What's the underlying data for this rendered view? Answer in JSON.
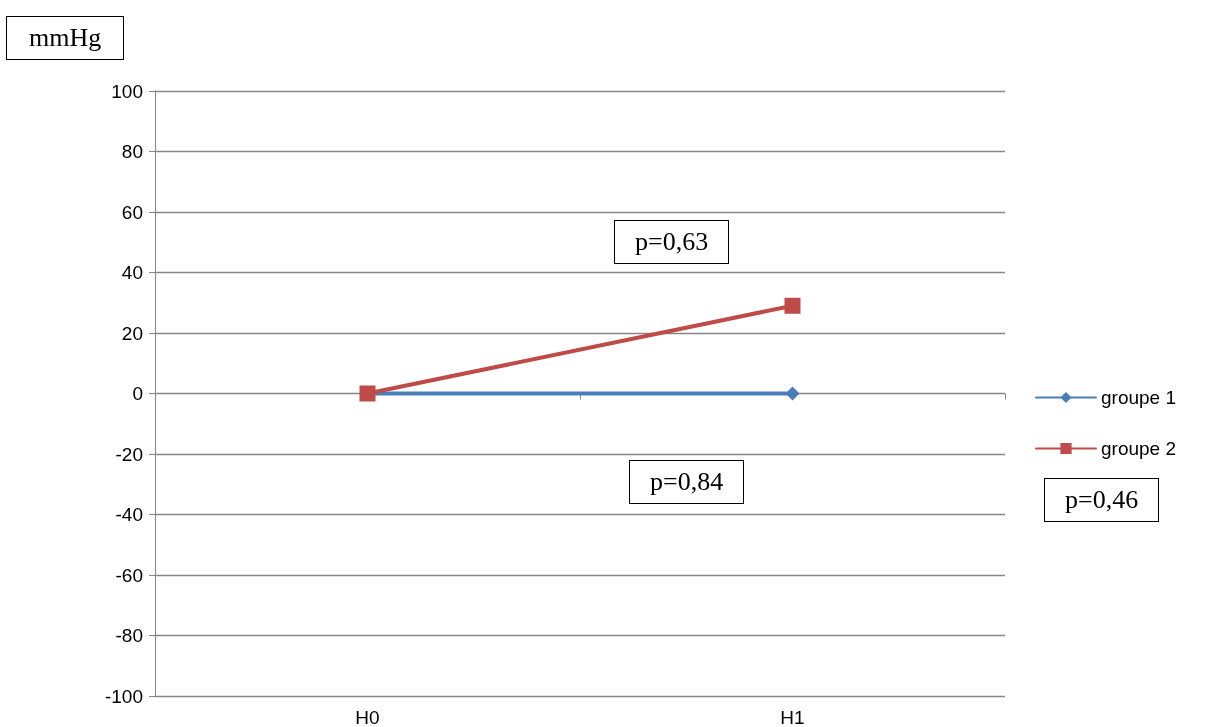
{
  "chart_data": {
    "type": "line",
    "ylabel": "mmHg",
    "categories": [
      "H0",
      "H1"
    ],
    "series": [
      {
        "name": "groupe 1",
        "color": "#4a7ebb",
        "marker": "diamond",
        "values": [
          0,
          0
        ]
      },
      {
        "name": "groupe 2",
        "color": "#be4b48",
        "marker": "square",
        "values": [
          0,
          29
        ]
      }
    ],
    "ylim": [
      -100,
      100
    ],
    "yticks": [
      -100,
      -80,
      -60,
      -40,
      -20,
      0,
      20,
      40,
      60,
      80,
      100
    ],
    "grid": "y",
    "legend": "right",
    "annotations": [
      "p=0,63",
      "p=0,84",
      "p=0,46"
    ]
  }
}
